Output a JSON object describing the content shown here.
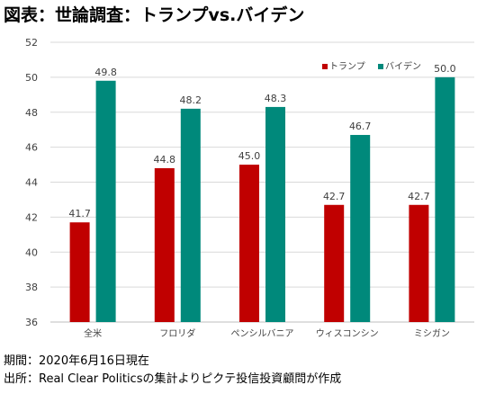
{
  "title": "図表：世論調査：トランプvs.バイデン",
  "footer": {
    "period": "期間：2020年6月16日現在",
    "source": "出所：Real Clear Politicsの集計よりピクテ投信投資顧問が作成"
  },
  "colors": {
    "trump": "#C00000",
    "biden": "#00897B",
    "grid": "#d9d9d9",
    "axis": "#bfbfbf"
  },
  "chart_data": {
    "type": "bar",
    "title": "",
    "xlabel": "",
    "ylabel": "",
    "ylim": [
      36,
      52
    ],
    "yticks": [
      36,
      38,
      40,
      42,
      44,
      46,
      48,
      50,
      52
    ],
    "categories": [
      "全米",
      "フロリダ",
      "ペンシルバニア",
      "ウィスコンシン",
      "ミシガン"
    ],
    "series": [
      {
        "name": "トランプ",
        "values": [
          41.7,
          44.8,
          45.0,
          42.7,
          42.7
        ]
      },
      {
        "name": "バイデン",
        "values": [
          49.8,
          48.2,
          48.3,
          46.7,
          50.0
        ]
      }
    ],
    "grid": true,
    "legend": "top-right"
  }
}
